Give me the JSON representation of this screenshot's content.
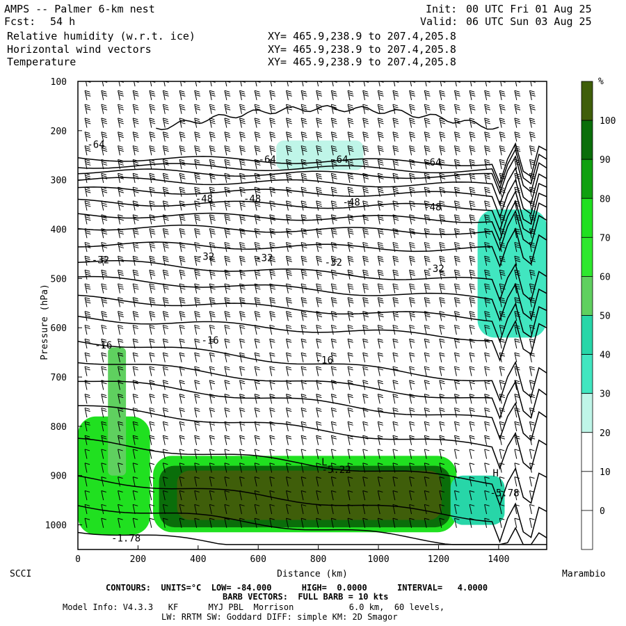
{
  "header": {
    "model_title": "AMPS -- Palmer 6-km nest",
    "forecast_label": "Fcst:",
    "forecast_value": "54 h",
    "init_label": "Init:",
    "init_value": "00 UTC Fri 01 Aug 25",
    "valid_label": "Valid:",
    "valid_value": "06 UTC Sun 03 Aug 25",
    "fields": [
      {
        "name": "Relative humidity (w.r.t. ice)",
        "xy": "XY= 465.9,238.9 to 207.4,205.8"
      },
      {
        "name": "Horizontal wind vectors",
        "xy": "XY= 465.9,238.9 to 207.4,205.8"
      },
      {
        "name": "Temperature",
        "xy": "XY= 465.9,238.9 to 207.4,205.8"
      }
    ]
  },
  "chart_data": {
    "type": "heatmap",
    "xlabel": "Distance (km)",
    "ylabel": "Pressure (hPa)",
    "xlim": [
      0,
      1560
    ],
    "ylim": [
      1050,
      100
    ],
    "x_ticks": [
      "0",
      "200",
      "400",
      "600",
      "800",
      "1000",
      "1200",
      "1400"
    ],
    "x_tick_values": [
      0,
      200,
      400,
      600,
      800,
      1000,
      1200,
      1400
    ],
    "y_ticks": [
      "100",
      "200",
      "300",
      "400",
      "500",
      "600",
      "700",
      "800",
      "900",
      "1000"
    ],
    "y_tick_values": [
      100,
      200,
      300,
      400,
      500,
      600,
      700,
      800,
      900,
      1000
    ],
    "left_endpoint": "SCCI",
    "right_endpoint": "Marambio",
    "colorbar": {
      "unit": "%",
      "labels": [
        "100",
        "90",
        "80",
        "70",
        "60",
        "50",
        "40",
        "30",
        "20",
        "10",
        "0"
      ],
      "colors": [
        "#3f5e0a",
        "#0a6e0a",
        "#10a010",
        "#20e020",
        "#2ee82e",
        "#5fd05f",
        "#27d6a8",
        "#41e6c0",
        "#bff5e8",
        "#ffffff",
        "#ffffff",
        "#ffffff"
      ]
    },
    "humidity_regions": [
      {
        "name": "low-level-moist-layer-outer",
        "x": [
          250,
          1260
        ],
        "p": [
          860,
          1015
        ],
        "rh": 70
      },
      {
        "name": "low-level-moist-layer-mid",
        "x": [
          270,
          1240
        ],
        "p": [
          880,
          1005
        ],
        "rh": 90
      },
      {
        "name": "low-level-moist-layer-core",
        "x": [
          330,
          1210
        ],
        "p": [
          890,
          990
        ],
        "rh": 100
      },
      {
        "name": "western-moist-column",
        "x": [
          0,
          240
        ],
        "p": [
          780,
          1020
        ],
        "rh": 70
      },
      {
        "name": "western-plume",
        "x": [
          100,
          160
        ],
        "p": [
          640,
          900
        ],
        "rh": 60
      },
      {
        "name": "upper-moist-patch",
        "x": [
          660,
          950
        ],
        "p": [
          220,
          280
        ],
        "rh": 35
      },
      {
        "name": "eastern-moist-column",
        "x": [
          1330,
          1560
        ],
        "p": [
          360,
          620
        ],
        "rh": 40
      },
      {
        "name": "eastern-low-moist",
        "x": [
          1240,
          1420
        ],
        "p": [
          900,
          1000
        ],
        "rh": 55
      }
    ],
    "temperature_contours": {
      "units": "°C",
      "low": -84.0,
      "high": 0.0,
      "interval": 4.0,
      "labels": [
        {
          "text": "-64",
          "x": 60,
          "p": 228
        },
        {
          "text": "-64",
          "x": 630,
          "p": 258
        },
        {
          "text": "-64",
          "x": 870,
          "p": 258
        },
        {
          "text": "-64",
          "x": 1180,
          "p": 264
        },
        {
          "text": "-48",
          "x": 420,
          "p": 338
        },
        {
          "text": "-48",
          "x": 580,
          "p": 338
        },
        {
          "text": "-48",
          "x": 910,
          "p": 345
        },
        {
          "text": "-48",
          "x": 1180,
          "p": 355
        },
        {
          "text": "-32",
          "x": 75,
          "p": 462
        },
        {
          "text": "-32",
          "x": 425,
          "p": 455
        },
        {
          "text": "-32",
          "x": 620,
          "p": 458
        },
        {
          "text": "-32",
          "x": 850,
          "p": 467
        },
        {
          "text": "-32",
          "x": 1190,
          "p": 480
        },
        {
          "text": "-16",
          "x": 85,
          "p": 635
        },
        {
          "text": "-16",
          "x": 440,
          "p": 625
        },
        {
          "text": "-16",
          "x": 820,
          "p": 665
        },
        {
          "text": "-5.22",
          "x": 860,
          "p": 888
        },
        {
          "text": "-5.78",
          "x": 1420,
          "p": 935
        },
        {
          "text": "-1.78",
          "x": 160,
          "p": 1027
        },
        {
          "text": "L",
          "x": 820,
          "p": 872
        },
        {
          "text": "H",
          "x": 1390,
          "p": 895
        }
      ],
      "levels_p_at_x0": [
        255,
        270,
        282,
        300,
        320,
        345,
        370,
        395,
        430,
        465,
        500,
        540,
        580,
        625,
        665,
        705,
        760,
        830,
        905,
        960,
        1010
      ]
    },
    "wind_barbs": {
      "full_barb_kts": 10,
      "x_positions": [
        30,
        85,
        140,
        190,
        245,
        290,
        345,
        395,
        445,
        495,
        545,
        595,
        645,
        700,
        750,
        800,
        850,
        905,
        955,
        1005,
        1055,
        1110,
        1160,
        1210,
        1260,
        1310,
        1360,
        1410,
        1460,
        1510
      ]
    }
  },
  "footer": {
    "contours_text": "CONTOURS:  UNITS=°C  LOW= -84.000      HIGH=  0.0000      INTERVAL=   4.0000",
    "barb_text": "BARB VECTORS:  FULL BARB = 10 kts",
    "model_info": "Model Info: V4.3.3   KF      MYJ PBL  Morrison           6.0 km,  60 levels,",
    "physics_info": "LW: RRTM SW: Goddard DIFF: simple KM: 2D Smagor"
  }
}
